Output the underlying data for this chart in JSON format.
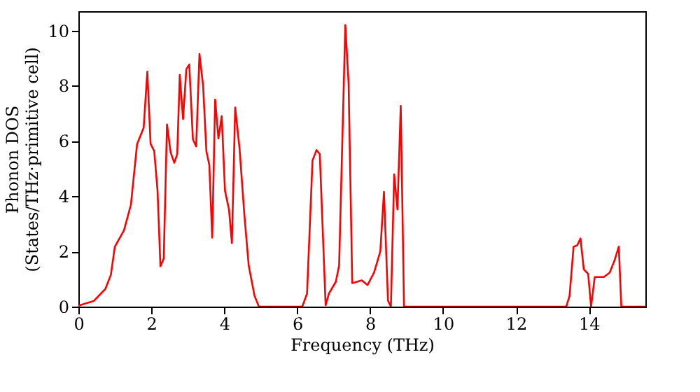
{
  "chart_data": {
    "type": "line",
    "xlabel": "Frequency (THz)",
    "ylabel": "Phonon DOS\n(States/THz·primitive cell)",
    "xlim": [
      0,
      15.55
    ],
    "ylim": [
      0,
      10.7
    ],
    "xticks": [
      0,
      2,
      4,
      6,
      8,
      10,
      12,
      14
    ],
    "yticks": [
      0,
      2,
      4,
      6,
      8,
      10
    ],
    "grid": false,
    "series": [
      {
        "color": "#ff0000",
        "x": [
          0,
          0.04,
          0.42,
          0.74,
          0.89,
          1.0,
          1.25,
          1.44,
          1.61,
          1.79,
          1.89,
          1.98,
          2.08,
          2.17,
          2.25,
          2.34,
          2.43,
          2.53,
          2.63,
          2.71,
          2.78,
          2.87,
          2.96,
          3.04,
          3.14,
          3.23,
          3.32,
          3.42,
          3.51,
          3.59,
          3.67,
          3.75,
          3.84,
          3.93,
          4.02,
          4.13,
          4.21,
          4.3,
          4.42,
          4.55,
          4.67,
          4.83,
          4.95,
          6.14,
          6.27,
          6.36,
          6.42,
          6.53,
          6.62,
          6.78,
          6.87,
          7.06,
          7.15,
          7.32,
          7.41,
          7.51,
          7.77,
          7.93,
          8.11,
          8.28,
          8.38,
          8.49,
          8.57,
          8.66,
          8.75,
          8.84,
          8.93,
          13.38,
          13.47,
          13.58,
          13.68,
          13.77,
          13.86,
          13.98,
          14.06,
          14.16,
          14.41,
          14.57,
          14.7,
          14.82,
          14.89,
          15.55
        ],
        "values": [
          0,
          0.05,
          0.2,
          0.64,
          1.15,
          2.17,
          2.76,
          3.69,
          5.89,
          6.48,
          8.51,
          5.89,
          5.63,
          4.2,
          1.46,
          1.74,
          6.6,
          5.58,
          5.21,
          5.52,
          8.39,
          6.79,
          8.6,
          8.77,
          6.06,
          5.8,
          9.15,
          8.0,
          5.63,
          5.13,
          2.5,
          7.5,
          6.09,
          6.9,
          4.2,
          3.52,
          2.3,
          7.21,
          5.72,
          3.35,
          1.49,
          0.39,
          0,
          0,
          0.47,
          3.35,
          5.29,
          5.67,
          5.52,
          0.05,
          0.47,
          0.9,
          1.49,
          10.2,
          8.09,
          0.85,
          0.95,
          0.78,
          1.24,
          2.0,
          4.16,
          0.22,
          0,
          4.79,
          3.52,
          7.27,
          0,
          0,
          0.39,
          2.17,
          2.22,
          2.47,
          1.35,
          1.18,
          0,
          1.07,
          1.07,
          1.23,
          1.66,
          2.17,
          0,
          0
        ]
      }
    ]
  }
}
